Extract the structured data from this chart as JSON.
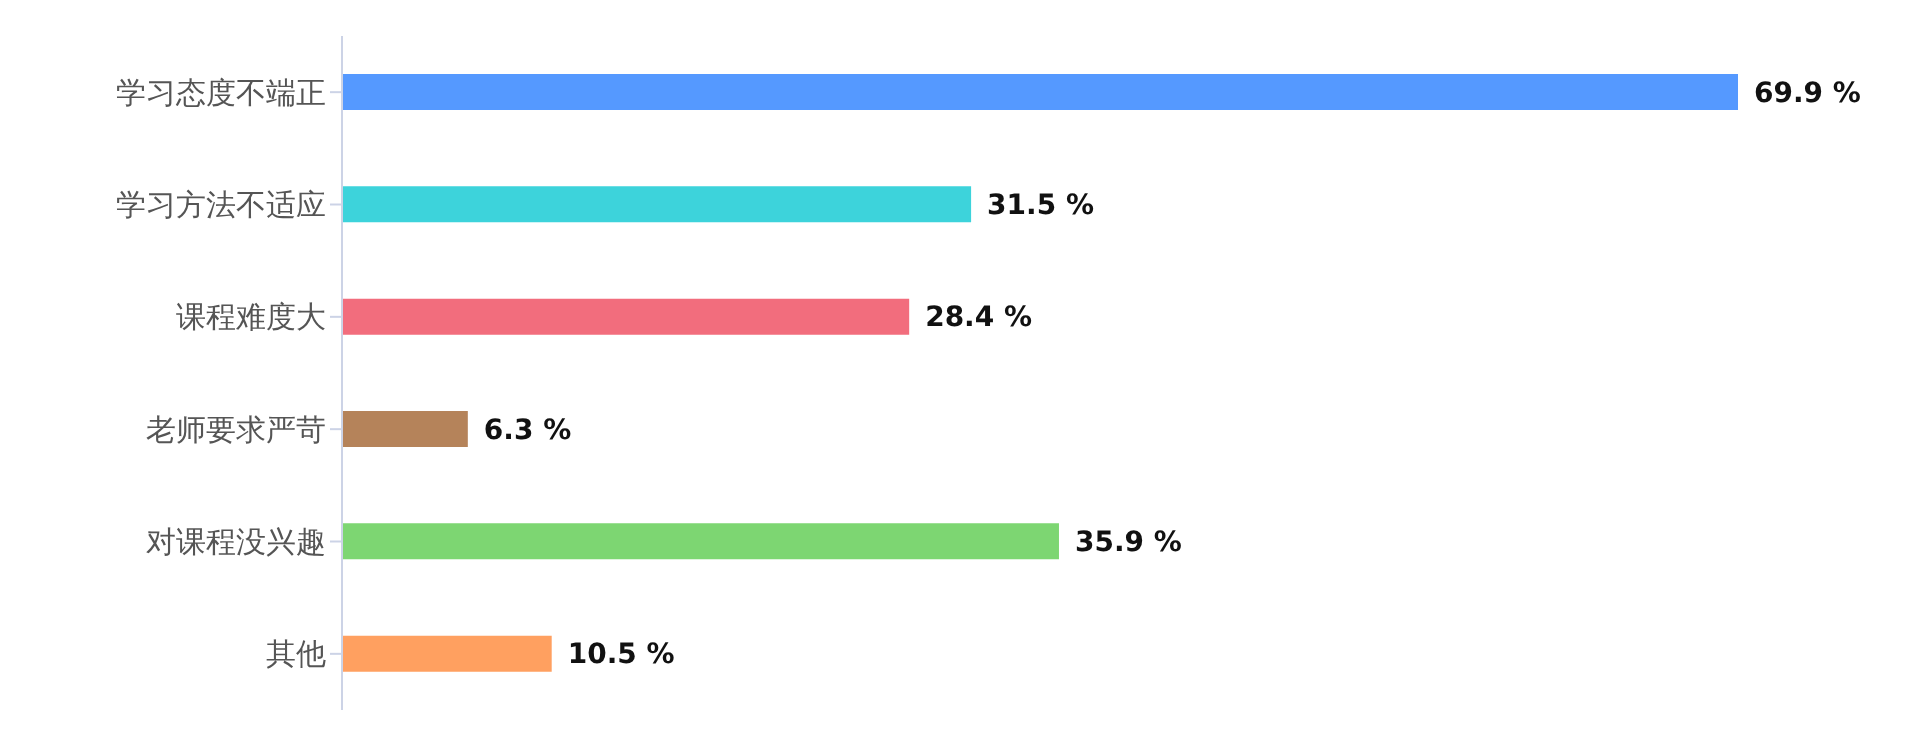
{
  "chart_data": {
    "type": "bar",
    "orientation": "horizontal",
    "categories": [
      "学习态度不端正",
      "学习方法不适应",
      "课程难度大",
      "老师要求严苛",
      "对课程没兴趣",
      "其他"
    ],
    "values": [
      69.9,
      31.5,
      28.4,
      6.3,
      35.9,
      10.5
    ],
    "value_labels": [
      "69.9 %",
      "31.5 %",
      "28.4 %",
      "6.3 %",
      "35.9 %",
      "10.5 %"
    ],
    "colors": [
      "#5599ff",
      "#3dd3db",
      "#f26d7d",
      "#b5835a",
      "#7dd672",
      "#ffa060"
    ],
    "grid": false,
    "legend": false
  }
}
